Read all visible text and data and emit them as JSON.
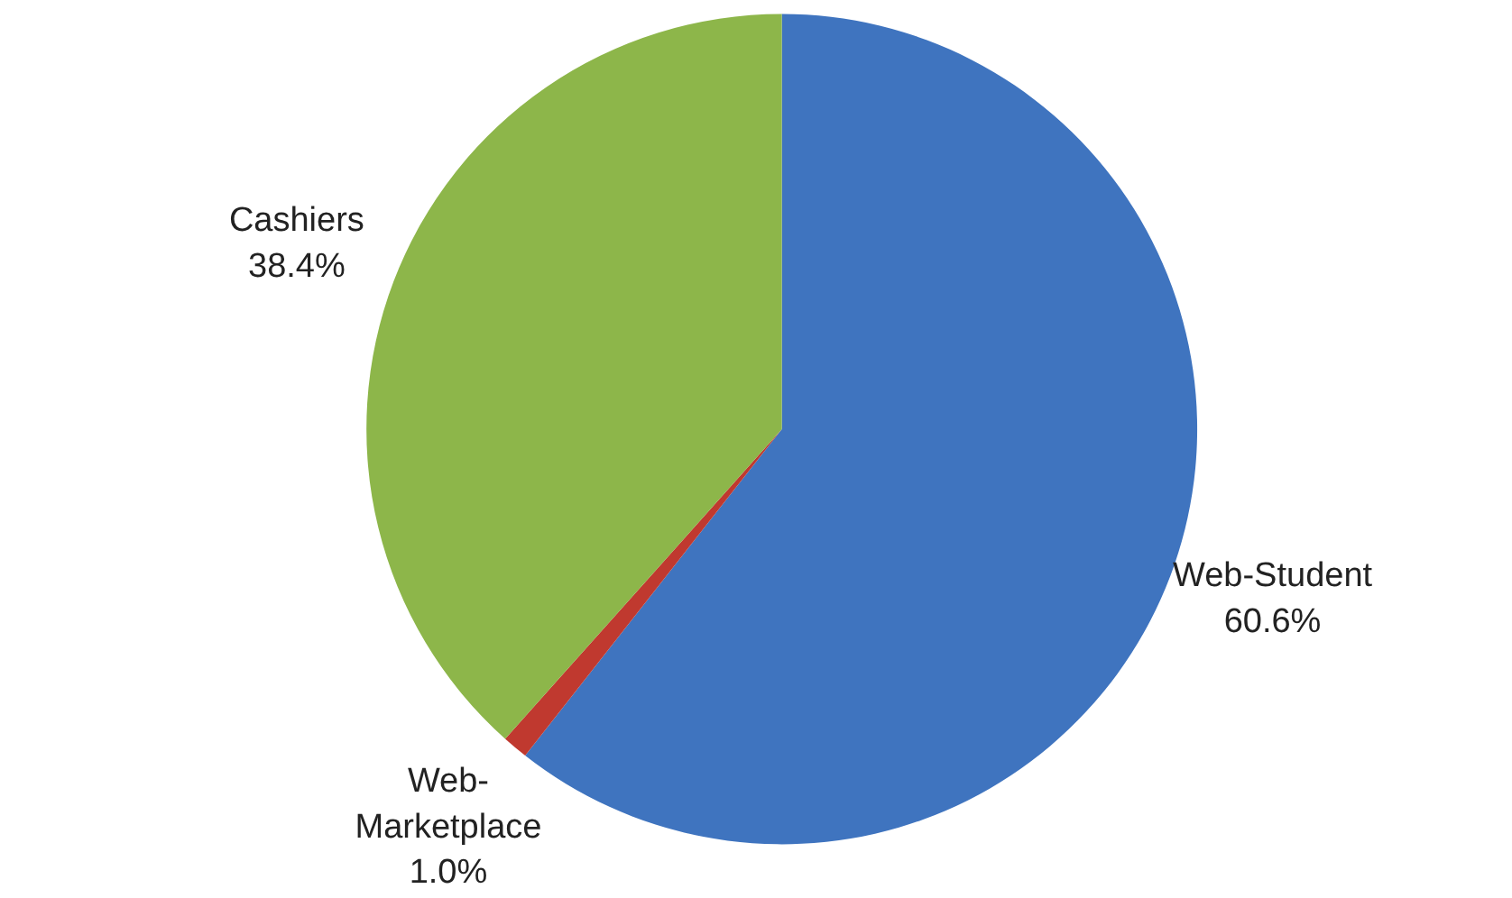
{
  "chart_data": {
    "type": "pie",
    "categories": [
      "Web-Student",
      "Web-Marketplace",
      "Cashiers"
    ],
    "values": [
      60.6,
      1.0,
      38.4
    ],
    "colors": [
      "#3f74bf",
      "#c0392f",
      "#8db64a"
    ],
    "value_labels": [
      "60.6%",
      "1.0%",
      "38.4%"
    ]
  }
}
